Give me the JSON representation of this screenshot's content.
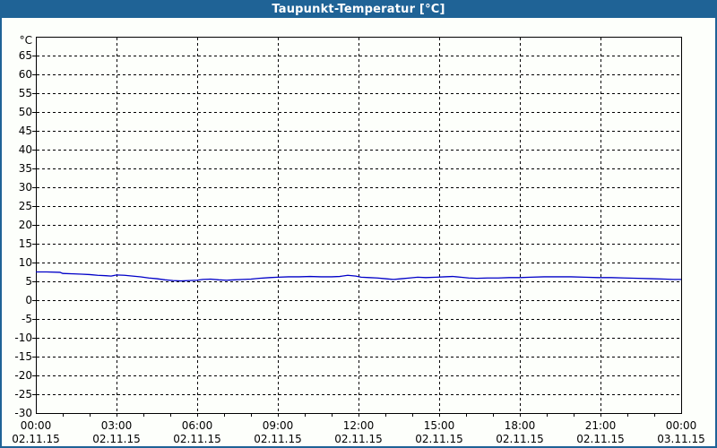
{
  "window": {
    "title": "Taupunkt-Temperatur [°C]"
  },
  "colors": {
    "titlebar_bg": "#1f6396",
    "titlebar_text": "#ffffff",
    "window_border": "#1f6396",
    "background": "#fdfffb",
    "axis": "#000000",
    "grid": "#000000",
    "label_text": "#000000",
    "series_line": "#0000c8"
  },
  "chart_data": {
    "type": "line",
    "title": "Taupunkt-Temperatur [°C]",
    "y_unit_label": "°C",
    "ylabel": "",
    "xlabel": "",
    "ylim": [
      -30,
      70
    ],
    "ytick_step": 5,
    "yticks": [
      65,
      60,
      55,
      50,
      45,
      40,
      35,
      30,
      25,
      20,
      15,
      10,
      5,
      0,
      -5,
      -10,
      -15,
      -20,
      -25,
      -30
    ],
    "xlim_hours": [
      0,
      24
    ],
    "minor_xtick_interval_hours": 1,
    "grid_style": "dashed",
    "legend": "none",
    "xticks": [
      {
        "hour": 0,
        "time": "00:00",
        "date": "02.11.15"
      },
      {
        "hour": 3,
        "time": "03:00",
        "date": "02.11.15"
      },
      {
        "hour": 6,
        "time": "06:00",
        "date": "02.11.15"
      },
      {
        "hour": 9,
        "time": "09:00",
        "date": "02.11.15"
      },
      {
        "hour": 12,
        "time": "12:00",
        "date": "02.11.15"
      },
      {
        "hour": 15,
        "time": "15:00",
        "date": "02.11.15"
      },
      {
        "hour": 18,
        "time": "18:00",
        "date": "02.11.15"
      },
      {
        "hour": 21,
        "time": "21:00",
        "date": "02.11.15"
      },
      {
        "hour": 24,
        "time": "00:00",
        "date": "03.11.15"
      }
    ],
    "series": [
      {
        "name": "Taupunkt-Temperatur [°C]",
        "color": "#0000c8",
        "points": [
          [
            0,
            7.5
          ],
          [
            0.4,
            7.5
          ],
          [
            0.9,
            7.4
          ],
          [
            1.0,
            7.1
          ],
          [
            1.4,
            7.0
          ],
          [
            1.7,
            6.9
          ],
          [
            2.0,
            6.8
          ],
          [
            2.3,
            6.6
          ],
          [
            2.6,
            6.5
          ],
          [
            2.8,
            6.4
          ],
          [
            3.0,
            6.7
          ],
          [
            3.3,
            6.6
          ],
          [
            3.6,
            6.4
          ],
          [
            3.9,
            6.2
          ],
          [
            4.2,
            5.9
          ],
          [
            4.5,
            5.7
          ],
          [
            4.8,
            5.4
          ],
          [
            5.1,
            5.2
          ],
          [
            5.4,
            5.1
          ],
          [
            5.7,
            5.2
          ],
          [
            6.0,
            5.3
          ],
          [
            6.2,
            5.5
          ],
          [
            6.5,
            5.6
          ],
          [
            6.8,
            5.4
          ],
          [
            7.1,
            5.3
          ],
          [
            7.4,
            5.4
          ],
          [
            7.7,
            5.5
          ],
          [
            8.0,
            5.6
          ],
          [
            8.3,
            5.8
          ],
          [
            8.7,
            6.0
          ],
          [
            9.0,
            6.1
          ],
          [
            9.4,
            6.2
          ],
          [
            9.8,
            6.2
          ],
          [
            10.2,
            6.3
          ],
          [
            10.6,
            6.2
          ],
          [
            11.0,
            6.2
          ],
          [
            11.3,
            6.3
          ],
          [
            11.6,
            6.6
          ],
          [
            11.9,
            6.4
          ],
          [
            12.1,
            6.1
          ],
          [
            12.4,
            6.0
          ],
          [
            12.7,
            5.9
          ],
          [
            13.0,
            5.7
          ],
          [
            13.3,
            5.5
          ],
          [
            13.6,
            5.7
          ],
          [
            13.9,
            5.9
          ],
          [
            14.2,
            6.1
          ],
          [
            14.5,
            6.0
          ],
          [
            14.9,
            6.1
          ],
          [
            15.2,
            6.2
          ],
          [
            15.5,
            6.3
          ],
          [
            15.8,
            6.1
          ],
          [
            16.1,
            5.9
          ],
          [
            16.4,
            5.8
          ],
          [
            16.8,
            5.9
          ],
          [
            17.2,
            5.9
          ],
          [
            17.6,
            6.0
          ],
          [
            18.0,
            6.0
          ],
          [
            18.4,
            6.1
          ],
          [
            18.9,
            6.2
          ],
          [
            19.4,
            6.2
          ],
          [
            19.9,
            6.2
          ],
          [
            20.4,
            6.1
          ],
          [
            20.9,
            6.0
          ],
          [
            21.4,
            6.0
          ],
          [
            21.9,
            5.9
          ],
          [
            22.4,
            5.8
          ],
          [
            22.9,
            5.7
          ],
          [
            23.4,
            5.6
          ],
          [
            23.7,
            5.5
          ],
          [
            24,
            5.5
          ]
        ]
      }
    ]
  }
}
